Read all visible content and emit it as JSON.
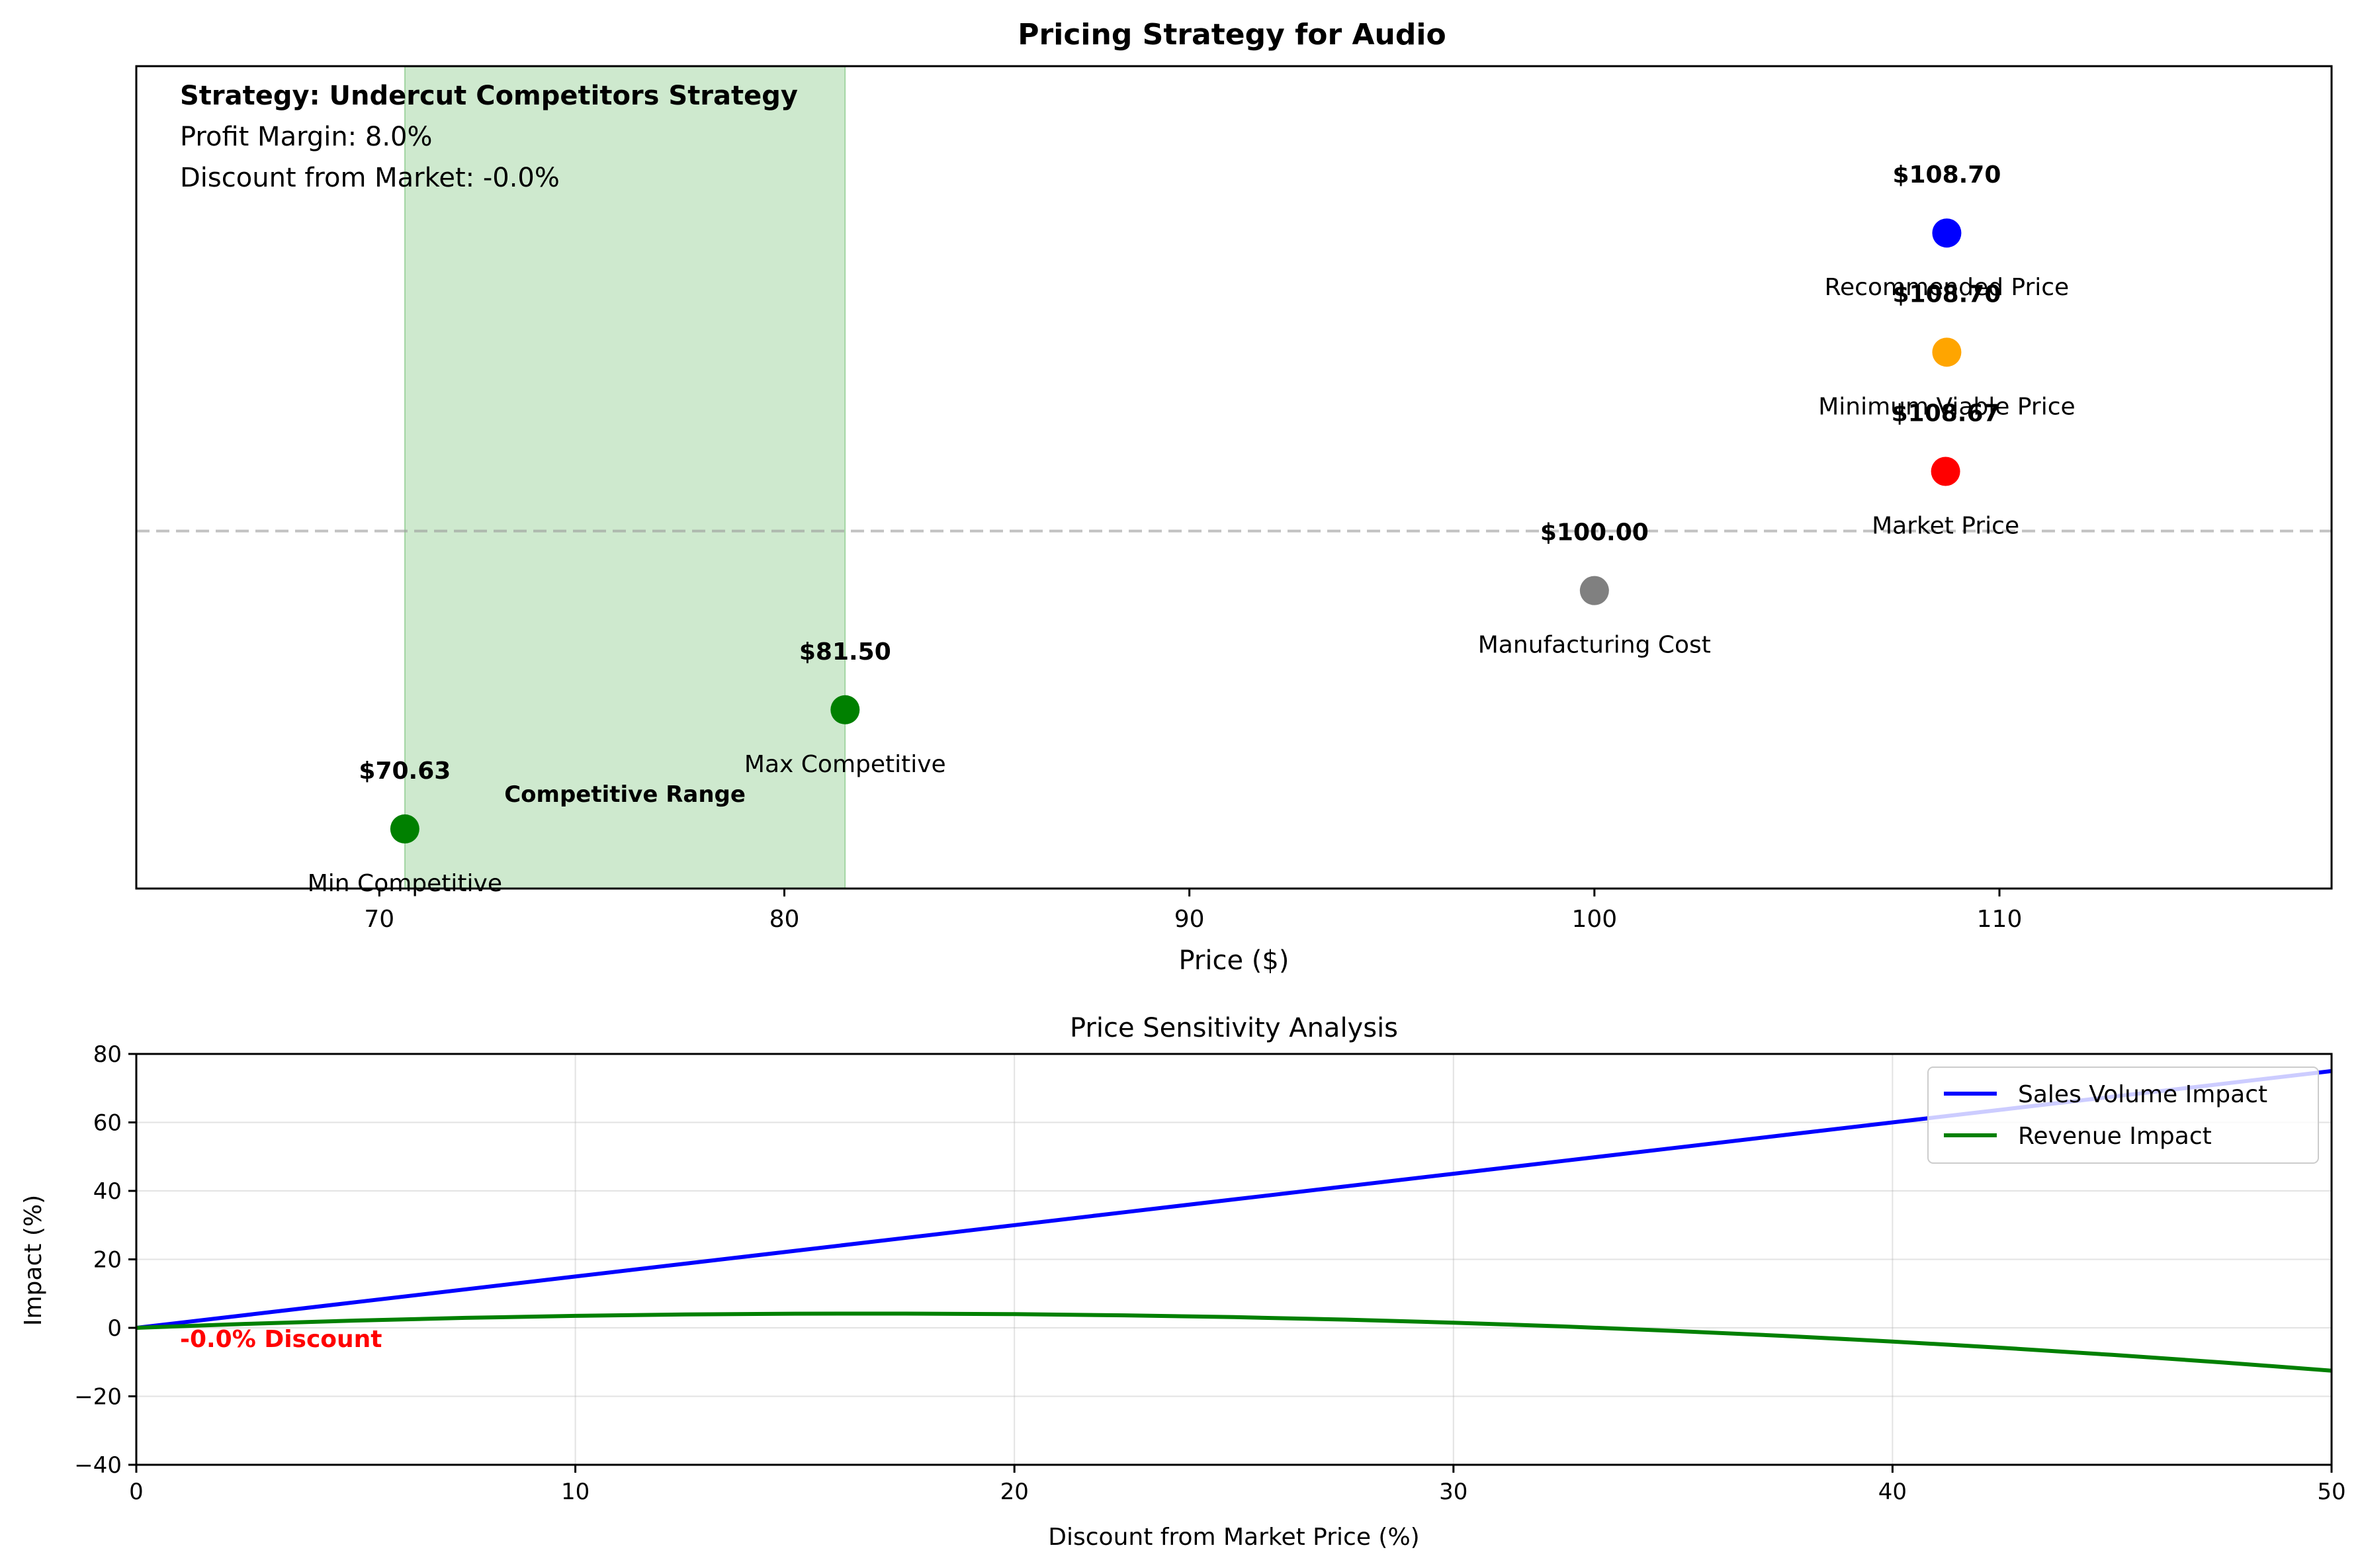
{
  "chart_data": [
    {
      "type": "scatter",
      "title": "Pricing Strategy for Audio",
      "xlabel": "Price ($)",
      "ylabel": "",
      "xlim": [
        64.0,
        118.2
      ],
      "xticks": [
        70,
        80,
        90,
        100,
        110
      ],
      "grid": false,
      "info_box": {
        "strategy": "Strategy: Undercut Competitors Strategy",
        "margin": "Profit Margin: 8.0%",
        "discount": "Discount from Market: -0.0%"
      },
      "competitive_range": {
        "min": 70.63,
        "max": 81.5,
        "label": "Competitive Range",
        "color": "#2ca02c"
      },
      "points": [
        {
          "name": "Min Competitive",
          "x": 70.63,
          "value_label": "$70.63",
          "level": 1,
          "color": "#008000"
        },
        {
          "name": "Max Competitive",
          "x": 81.5,
          "value_label": "$81.50",
          "level": 2,
          "color": "#008000"
        },
        {
          "name": "Manufacturing Cost",
          "x": 100.0,
          "value_label": "$100.00",
          "level": 3,
          "color": "#808080"
        },
        {
          "name": "Market Price",
          "x": 108.67,
          "value_label": "$108.67",
          "level": 4,
          "color": "#ff0000"
        },
        {
          "name": "Minimum Viable Price",
          "x": 108.7,
          "value_label": "$108.70",
          "level": 5,
          "color": "#ffa500"
        },
        {
          "name": "Recommended Price",
          "x": 108.7,
          "value_label": "$108.70",
          "level": 6,
          "color": "#0000ff"
        }
      ],
      "reference_line_level": 3.5
    },
    {
      "type": "line",
      "title": "Price Sensitivity Analysis",
      "xlabel": "Discount from Market Price (%)",
      "ylabel": "Impact (%)",
      "xlim": [
        0,
        50
      ],
      "ylim": [
        -40,
        80
      ],
      "xticks": [
        0,
        10,
        20,
        30,
        40,
        50
      ],
      "yticks": [
        -40,
        -20,
        0,
        20,
        40,
        60,
        80
      ],
      "ytick_labels": [
        "−40",
        "−20",
        "0",
        "20",
        "40",
        "60",
        "80"
      ],
      "grid": true,
      "legend_position": "top-right",
      "x": [
        0,
        2.5,
        5,
        7.5,
        10,
        12.5,
        15,
        17.5,
        20,
        22.5,
        25,
        27.5,
        30,
        32.5,
        35,
        37.5,
        40,
        42.5,
        45,
        47.5,
        50
      ],
      "series": [
        {
          "name": "Sales Volume Impact",
          "color": "#0000ff",
          "values": [
            0,
            3.75,
            7.5,
            11.25,
            15,
            18.75,
            22.5,
            26.25,
            30,
            33.75,
            37.5,
            41.25,
            45,
            48.75,
            52.5,
            56.25,
            60,
            63.75,
            67.5,
            71.25,
            75
          ]
        },
        {
          "name": "Revenue Impact",
          "color": "#008000",
          "values": [
            0,
            1.16,
            2.13,
            2.91,
            3.5,
            3.91,
            4.13,
            4.16,
            4.0,
            3.66,
            3.13,
            2.41,
            1.5,
            0.41,
            -0.88,
            -2.34,
            -4.0,
            -5.84,
            -7.88,
            -10.09,
            -12.5
          ]
        }
      ],
      "annotation": {
        "text": "-0.0% Discount",
        "color": "#ff0000"
      }
    }
  ]
}
